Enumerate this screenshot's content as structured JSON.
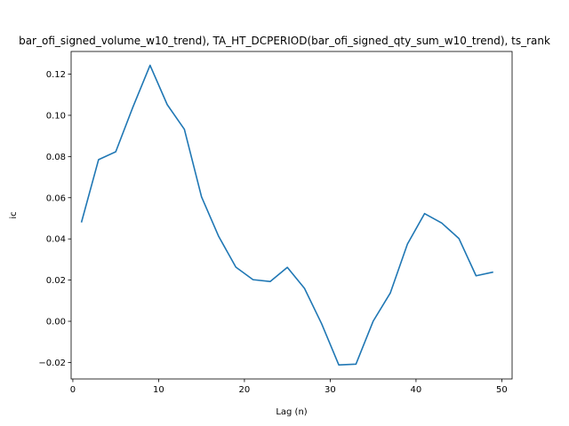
{
  "chart_data": {
    "type": "line",
    "title": "bar_ofi_signed_volume_w10_trend), TA_HT_DCPERIOD(bar_ofi_signed_qty_sum_w10_trend), ts_rank",
    "xlabel": "Lag (n)",
    "ylabel": "ic",
    "xlim": [
      -0.2,
      51.2
    ],
    "ylim": [
      -0.028,
      0.131
    ],
    "x_ticks": [
      0,
      10,
      20,
      30,
      40,
      50
    ],
    "y_ticks": [
      -0.02,
      0.0,
      0.02,
      0.04,
      0.06,
      0.08,
      0.1,
      0.12
    ],
    "y_tick_labels": [
      "−0.02",
      "0.00",
      "0.02",
      "0.04",
      "0.06",
      "0.08",
      "0.10",
      "0.12"
    ],
    "grid": false,
    "line_color": "#1f77b4",
    "series": [
      {
        "x": [
          1,
          3,
          5,
          7,
          9,
          11,
          13,
          15,
          17,
          19,
          21,
          23,
          25,
          27,
          29,
          31,
          33,
          35,
          37,
          39,
          41,
          43,
          45,
          47,
          49
        ],
        "values": [
          0.048,
          0.0785,
          0.0823,
          0.104,
          0.1243,
          0.1052,
          0.0932,
          0.0604,
          0.0412,
          0.0263,
          0.0202,
          0.0193,
          0.0262,
          0.016,
          -0.0012,
          -0.0212,
          -0.0208,
          0.0,
          0.0137,
          0.0375,
          0.0523,
          0.0477,
          0.0402,
          0.0221,
          0.0239
        ]
      }
    ]
  }
}
